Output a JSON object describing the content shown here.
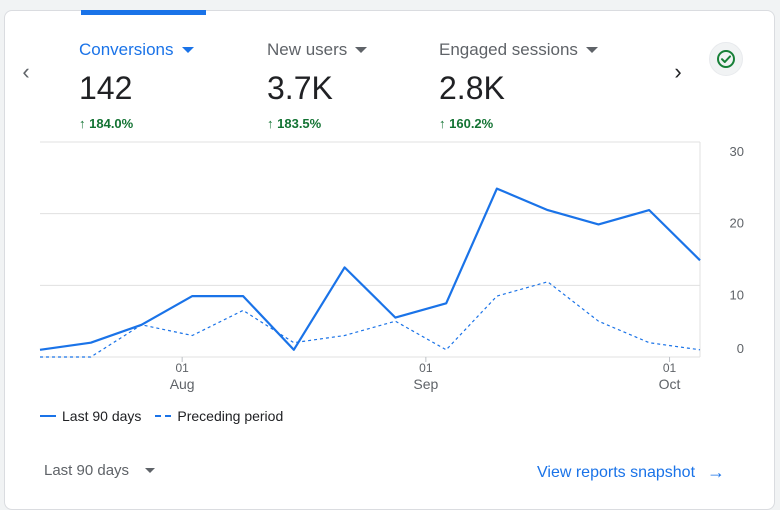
{
  "tabs": [
    {
      "label": "Conversions",
      "value": "142",
      "change": "184.0%",
      "active": true
    },
    {
      "label": "New users",
      "value": "3.7K",
      "change": "183.5%",
      "active": false
    },
    {
      "label": "Engaged sessions",
      "value": "2.8K",
      "change": "160.2%",
      "active": false
    }
  ],
  "chart_data": {
    "type": "line",
    "y_ticks": [
      "30",
      "20",
      "10",
      "0"
    ],
    "ylim": [
      0,
      30
    ],
    "x_tick_labels": [
      {
        "day": "01",
        "month": "Aug"
      },
      {
        "day": "01",
        "month": "Sep"
      },
      {
        "day": "01",
        "month": "Oct"
      }
    ],
    "x_tick_index": [
      2.8,
      7.6,
      12.4
    ],
    "series": [
      {
        "name": "Last 90 days",
        "style": "solid",
        "values": [
          1,
          2,
          4.5,
          8.5,
          8.5,
          1,
          12.5,
          5.5,
          7.5,
          23.5,
          20.5,
          18.5,
          20.5,
          13.5
        ]
      },
      {
        "name": "Preceding period",
        "style": "dashed",
        "values": [
          0,
          0,
          4.5,
          3,
          6.5,
          2,
          3,
          5,
          1,
          8.5,
          10.5,
          5,
          2,
          1
        ]
      }
    ],
    "grid": true,
    "legend_position": "bottom-left"
  },
  "footer": {
    "range_label": "Last 90 days",
    "link_label": "View reports snapshot"
  },
  "colors": {
    "accent": "#1a73e8",
    "positive": "#137333"
  },
  "icons": {
    "check": "check-circle-icon",
    "prev": "chevron-left-icon",
    "next": "chevron-right-icon"
  }
}
